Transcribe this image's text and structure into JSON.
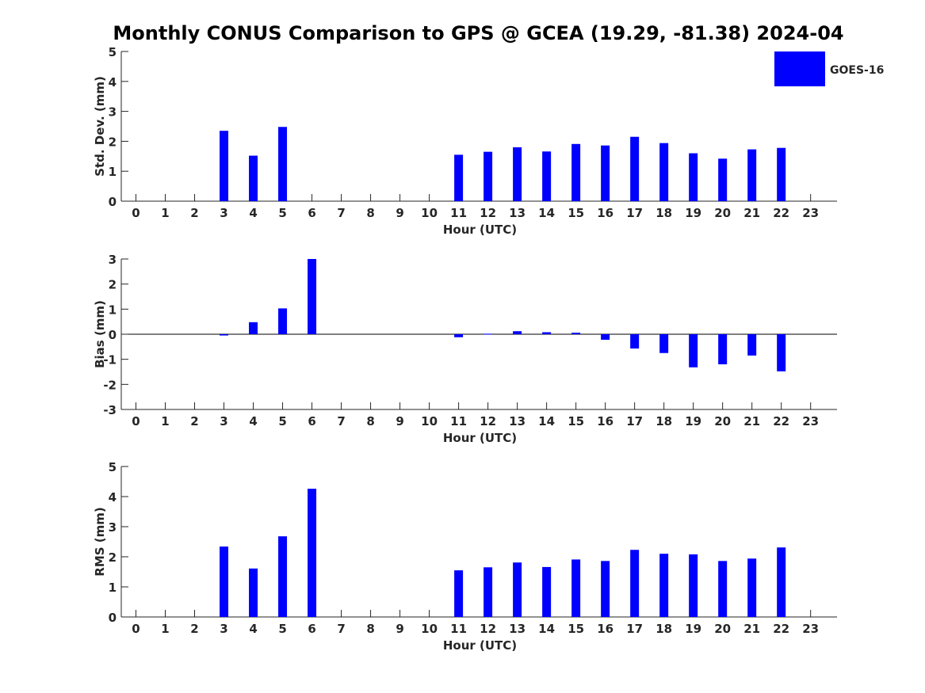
{
  "figure_title": "Monthly CONUS Comparison to GPS @ GCEA (19.29, -81.38) 2024-04",
  "legend": {
    "label": "GOES-16",
    "color": "#0000ff",
    "placement": "top-right"
  },
  "chart_data": [
    {
      "type": "bar",
      "title": "Monthly CONUS Comparison to GPS @ GCEA (19.29, -81.38) 2024-04",
      "xlabel": "Hour (UTC)",
      "ylabel": "Std. Dev. (mm)",
      "ylim": [
        0,
        5
      ],
      "yticks": [
        "0",
        "1",
        "2",
        "3",
        "4",
        "5"
      ],
      "categories": [
        "0",
        "1",
        "2",
        "3",
        "4",
        "5",
        "6",
        "7",
        "8",
        "9",
        "10",
        "11",
        "12",
        "13",
        "14",
        "15",
        "16",
        "17",
        "18",
        "19",
        "20",
        "21",
        "22",
        "23"
      ],
      "series": [
        {
          "name": "GOES-16",
          "color": "#0000ff",
          "values": [
            null,
            null,
            null,
            2.35,
            1.52,
            2.48,
            null,
            null,
            null,
            null,
            null,
            1.55,
            1.65,
            1.8,
            1.66,
            1.91,
            1.86,
            2.15,
            1.94,
            1.6,
            1.42,
            1.73,
            1.78,
            null
          ]
        }
      ],
      "grid": false
    },
    {
      "type": "bar",
      "xlabel": "Hour (UTC)",
      "ylabel": "Bias (mm)",
      "ylim": [
        -3,
        3
      ],
      "yticks": [
        "-3",
        "-2",
        "-1",
        "0",
        "1",
        "2",
        "3"
      ],
      "categories": [
        "0",
        "1",
        "2",
        "3",
        "4",
        "5",
        "6",
        "7",
        "8",
        "9",
        "10",
        "11",
        "12",
        "13",
        "14",
        "15",
        "16",
        "17",
        "18",
        "19",
        "20",
        "21",
        "22",
        "23"
      ],
      "series": [
        {
          "name": "GOES-16",
          "color": "#0000ff",
          "values": [
            null,
            null,
            null,
            -0.05,
            0.48,
            1.03,
            3.0,
            null,
            null,
            null,
            null,
            -0.12,
            0.02,
            0.12,
            0.08,
            0.06,
            -0.22,
            -0.57,
            -0.75,
            -1.32,
            -1.2,
            -0.85,
            -1.48,
            null
          ]
        }
      ],
      "grid": false
    },
    {
      "type": "bar",
      "xlabel": "Hour (UTC)",
      "ylabel": "RMS (mm)",
      "ylim": [
        0,
        5
      ],
      "yticks": [
        "0",
        "1",
        "2",
        "3",
        "4",
        "5"
      ],
      "categories": [
        "0",
        "1",
        "2",
        "3",
        "4",
        "5",
        "6",
        "7",
        "8",
        "9",
        "10",
        "11",
        "12",
        "13",
        "14",
        "15",
        "16",
        "17",
        "18",
        "19",
        "20",
        "21",
        "22",
        "23"
      ],
      "series": [
        {
          "name": "GOES-16",
          "color": "#0000ff",
          "values": [
            null,
            null,
            null,
            2.34,
            1.61,
            2.68,
            4.26,
            null,
            null,
            null,
            null,
            1.55,
            1.65,
            1.81,
            1.66,
            1.91,
            1.86,
            2.23,
            2.1,
            2.08,
            1.86,
            1.94,
            2.31,
            null
          ]
        }
      ],
      "grid": false
    }
  ]
}
